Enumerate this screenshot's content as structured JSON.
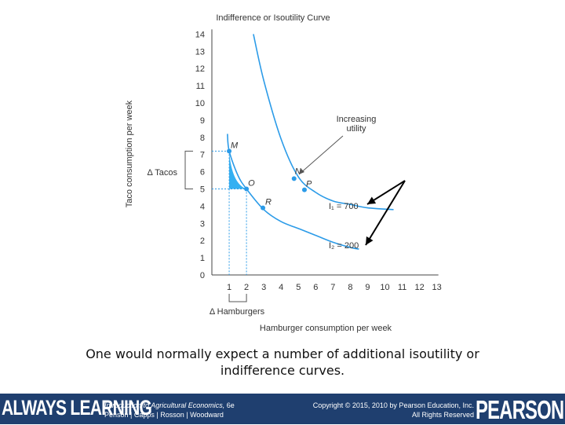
{
  "chart_data": {
    "type": "line",
    "title": "Indifference or Isoutility Curve",
    "xlabel": "Hamburger consumption per week",
    "ylabel": "Taco consumption per week",
    "x_ticks": [
      1,
      2,
      3,
      4,
      5,
      6,
      7,
      8,
      9,
      10,
      11,
      12,
      13
    ],
    "y_ticks": [
      0,
      1,
      2,
      3,
      4,
      5,
      6,
      7,
      8,
      9,
      10,
      11,
      12,
      13,
      14
    ],
    "xlim": [
      0,
      13
    ],
    "ylim": [
      0,
      14
    ],
    "grid": false,
    "series": [
      {
        "name": "I₁ = 700",
        "x": [
          2.4,
          3.0,
          4.0,
          5.0,
          6.0,
          7.0,
          8.0,
          9.0,
          10.5
        ],
        "y": [
          14.0,
          11.3,
          7.9,
          5.7,
          4.8,
          4.3,
          4.1,
          3.9,
          3.8
        ]
      },
      {
        "name": "I₂ = 200",
        "x": [
          0.9,
          1.0,
          1.5,
          2.0,
          3.0,
          4.0,
          5.0,
          6.0,
          7.0,
          8.0,
          8.5
        ],
        "y": [
          8.2,
          7.2,
          5.8,
          5.0,
          3.8,
          3.1,
          2.7,
          2.3,
          1.9,
          1.6,
          1.5
        ]
      }
    ],
    "points": [
      {
        "label": "M",
        "x": 1.0,
        "y": 7.2
      },
      {
        "label": "O",
        "x": 2.0,
        "y": 5.0
      },
      {
        "label": "R",
        "x": 2.95,
        "y": 3.9
      },
      {
        "label": "N",
        "x": 4.75,
        "y": 5.6
      },
      {
        "label": "P",
        "x": 5.35,
        "y": 4.95
      }
    ],
    "curve_labels": {
      "upper": "I₁ = 700",
      "lower": "I₂ = 200"
    },
    "annotations": {
      "increasing_utility": "Increasing\nutility",
      "delta_tacos": "Δ Tacos",
      "delta_hamburgers": "Δ Hamburgers"
    },
    "colors": {
      "curve": "#2b9be8",
      "fill": "#33b0f2",
      "axis": "#444444",
      "text": "#333333"
    }
  },
  "caption": {
    "line1": "One would normally expect a number of additional isoutility or",
    "line2": "indifference curves."
  },
  "footer": {
    "brand_left": "ALWAYS LEARNING",
    "book_title": "Introduction to Agricultural Economics,",
    "edition": "6e",
    "authors": "Penson | Capps | Rosson | Woodward",
    "copyright": "Copyright © 2015, 2010 by Pearson Education, Inc.",
    "rights": "All Rights Reserved",
    "brand_right": "PEARSON",
    "background_color": "#1f3f6f"
  }
}
